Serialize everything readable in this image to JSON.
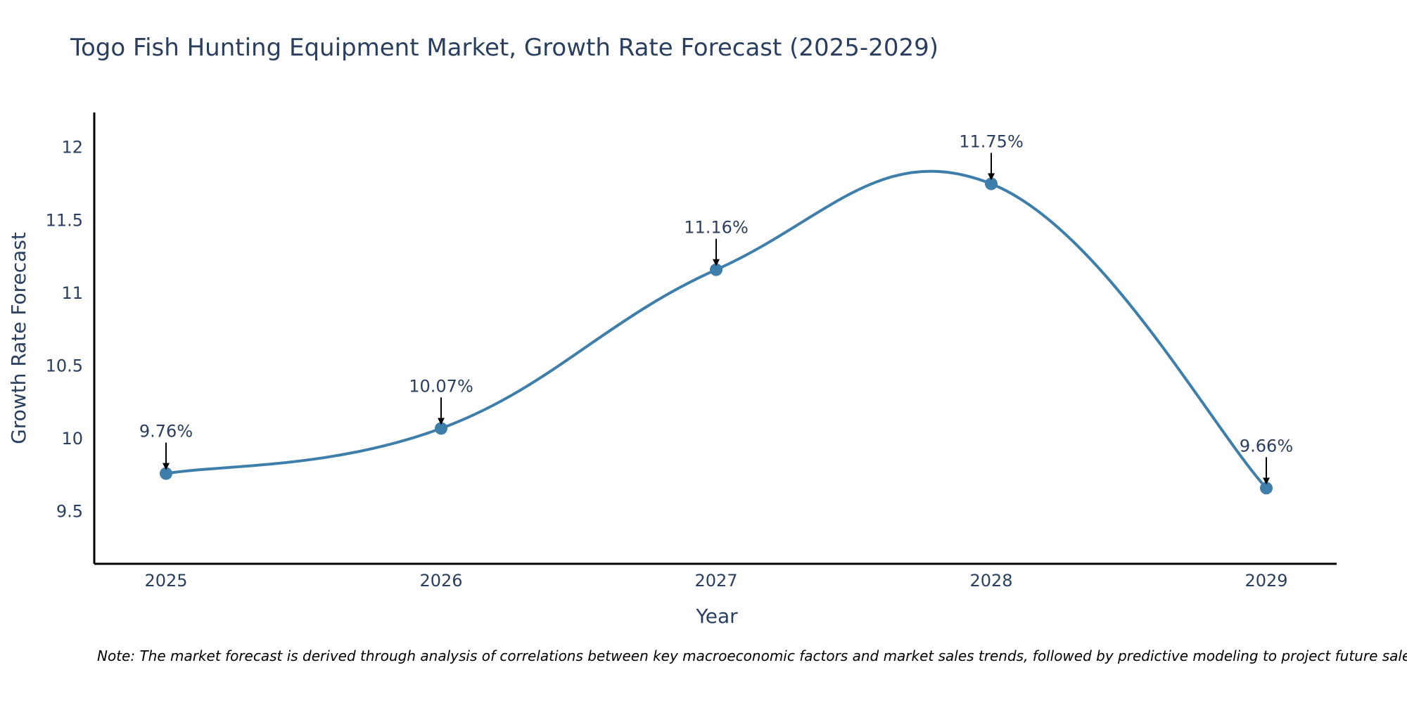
{
  "chart_data": {
    "type": "line",
    "title": "Togo Fish Hunting Equipment Market, Growth Rate Forecast (2025-2029)",
    "xlabel": "Year",
    "ylabel": "Growth Rate Forecast",
    "categories": [
      "2025",
      "2026",
      "2027",
      "2028",
      "2029"
    ],
    "values": [
      9.76,
      10.07,
      11.16,
      11.75,
      9.66
    ],
    "data_labels": [
      "9.76%",
      "10.07%",
      "11.16%",
      "11.75%",
      "9.66%"
    ],
    "y_ticks": [
      9.5,
      10,
      10.5,
      11,
      11.5,
      12
    ],
    "y_tick_labels": [
      "9.5",
      "10",
      "10.5",
      "11",
      "11.5",
      "12"
    ],
    "ylim": [
      9.14,
      12.24
    ],
    "grid": false,
    "legend": "none",
    "line_color": "#3d7eab",
    "marker_color": "#3d7eab",
    "note": "Note: The market forecast is derived through analysis of correlations between key macroeconomic factors and market sales trends, followed by predictive modeling to project future sales."
  }
}
